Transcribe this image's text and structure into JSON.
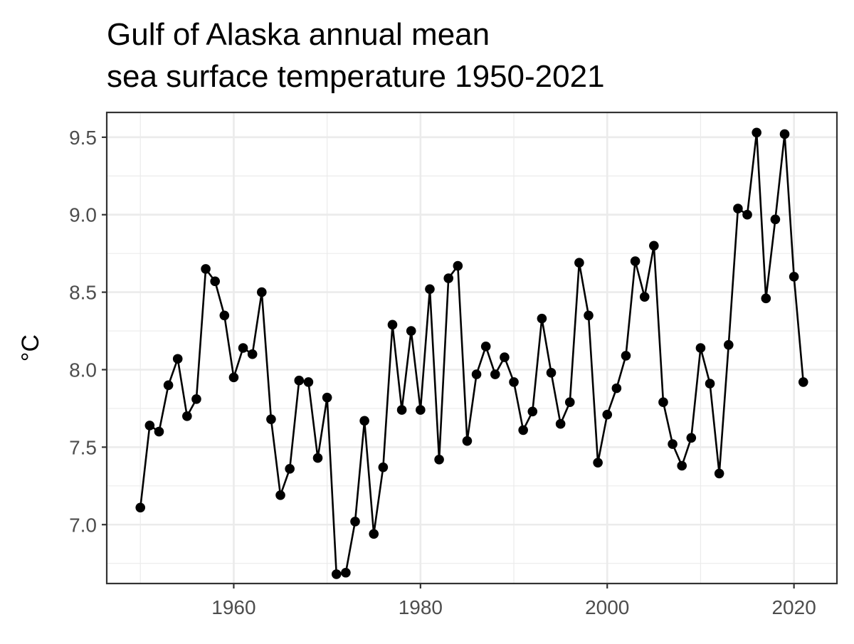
{
  "chart_data": {
    "type": "line",
    "title_lines": [
      "Gulf of Alaska annual mean",
      "sea surface temperature 1950-2021"
    ],
    "xlabel": "",
    "ylabel": "°C",
    "xlim": [
      1946.4,
      2024.6
    ],
    "ylim": [
      6.62,
      9.66
    ],
    "x_ticks": [
      1960,
      1980,
      2000,
      2020
    ],
    "x_tick_labels": [
      "1960",
      "1980",
      "2000",
      "2020"
    ],
    "y_ticks": [
      7.0,
      7.5,
      8.0,
      8.5,
      9.0,
      9.5
    ],
    "y_tick_labels": [
      "7.0",
      "7.5",
      "8.0",
      "8.5",
      "9.0",
      "9.5"
    ],
    "grid": true,
    "markers": true,
    "legend": "none",
    "colors": {
      "line": "#000000",
      "grid": "#ebebeb",
      "panel_border": "#333333",
      "tick_label": "#4d4d4d"
    },
    "x": [
      1950,
      1951,
      1952,
      1953,
      1954,
      1955,
      1956,
      1957,
      1958,
      1959,
      1960,
      1961,
      1962,
      1963,
      1964,
      1965,
      1966,
      1967,
      1968,
      1969,
      1970,
      1971,
      1972,
      1973,
      1974,
      1975,
      1976,
      1977,
      1978,
      1979,
      1980,
      1981,
      1982,
      1983,
      1984,
      1985,
      1986,
      1987,
      1988,
      1989,
      1990,
      1991,
      1992,
      1993,
      1994,
      1995,
      1996,
      1997,
      1998,
      1999,
      2000,
      2001,
      2002,
      2003,
      2004,
      2005,
      2006,
      2007,
      2008,
      2009,
      2010,
      2011,
      2012,
      2013,
      2014,
      2015,
      2016,
      2017,
      2018,
      2019,
      2020,
      2021
    ],
    "series": [
      {
        "values": [
          7.11,
          7.64,
          7.6,
          7.9,
          8.07,
          7.7,
          7.81,
          8.65,
          8.57,
          8.35,
          7.95,
          8.14,
          8.1,
          8.5,
          7.68,
          7.19,
          7.36,
          7.93,
          7.92,
          7.43,
          7.82,
          6.68,
          6.69,
          7.02,
          7.67,
          6.94,
          7.37,
          8.29,
          7.74,
          8.25,
          7.74,
          8.52,
          7.42,
          8.59,
          8.67,
          7.54,
          7.97,
          8.15,
          7.97,
          8.08,
          7.92,
          7.61,
          7.73,
          8.33,
          7.98,
          7.65,
          7.79,
          8.69,
          8.35,
          7.4,
          7.71,
          7.88,
          8.09,
          8.7,
          8.47,
          8.8,
          7.79,
          7.52,
          7.38,
          7.56,
          8.14,
          7.91,
          7.33,
          8.16,
          9.04,
          9.0,
          9.53,
          8.46,
          8.97,
          9.52,
          8.6,
          7.92
        ]
      }
    ]
  }
}
